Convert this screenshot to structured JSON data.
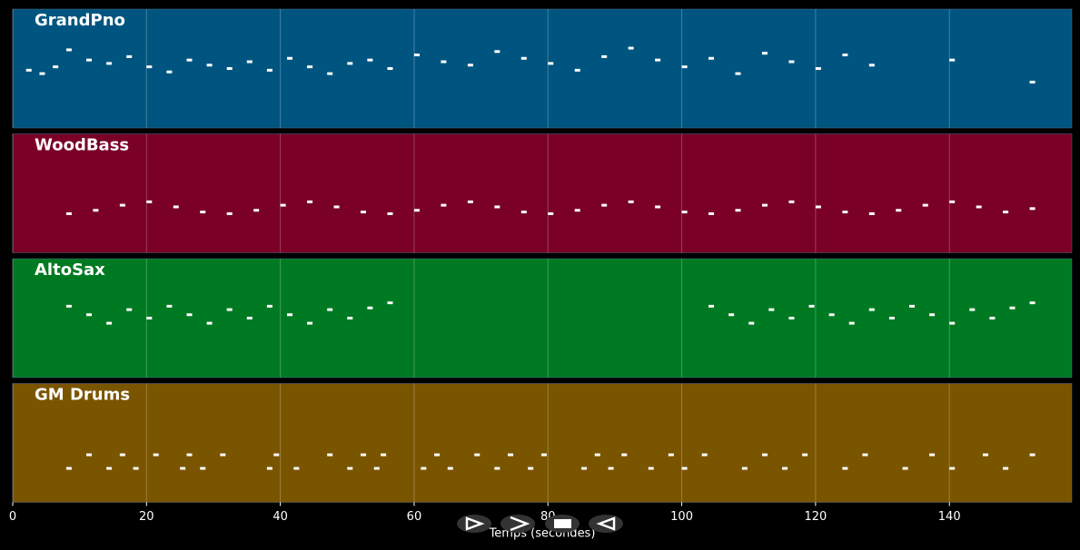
{
  "chart_data": {
    "type": "pianoroll",
    "xlabel": "Temps (secondes)",
    "xlim": [
      0,
      158.3
    ],
    "xticks": [
      0,
      20,
      40,
      60,
      80,
      100,
      120,
      140
    ],
    "ylim": [
      30,
      100
    ],
    "series": [
      {
        "name": "GrandPno",
        "color": "#005580",
        "x": [
          2,
          4,
          6,
          8,
          11,
          14,
          17,
          20,
          23,
          26,
          29,
          32,
          35,
          38,
          41,
          44,
          47,
          50,
          53,
          56,
          60,
          64,
          68,
          72,
          76,
          80,
          84,
          88,
          92,
          96,
          100,
          104,
          108,
          112,
          116,
          120,
          124,
          128,
          140,
          152
        ],
        "values": [
          64,
          62,
          66,
          76,
          70,
          68,
          72,
          66,
          63,
          70,
          67,
          65,
          69,
          64,
          71,
          66,
          62,
          68,
          70,
          65,
          73,
          69,
          67,
          75,
          71,
          68,
          64,
          72,
          77,
          70,
          66,
          71,
          62,
          74,
          69,
          65,
          73,
          67,
          70,
          57
        ]
      },
      {
        "name": "WoodBass",
        "color": "#7a0028",
        "x": [
          8,
          12,
          16,
          20,
          24,
          28,
          32,
          36,
          40,
          44,
          48,
          52,
          56,
          60,
          64,
          68,
          72,
          76,
          80,
          84,
          88,
          92,
          96,
          100,
          104,
          108,
          112,
          116,
          120,
          124,
          128,
          132,
          136,
          140,
          144,
          148,
          152
        ],
        "values": [
          53,
          55,
          58,
          60,
          57,
          54,
          53,
          55,
          58,
          60,
          57,
          54,
          53,
          55,
          58,
          60,
          57,
          54,
          53,
          55,
          58,
          60,
          57,
          54,
          53,
          55,
          58,
          60,
          57,
          54,
          53,
          55,
          58,
          60,
          57,
          54,
          56
        ]
      },
      {
        "name": "AltoSax",
        "color": "#007a22",
        "x": [
          8,
          11,
          14,
          17,
          20,
          23,
          26,
          29,
          32,
          35,
          38,
          41,
          44,
          47,
          50,
          53,
          56,
          104,
          107,
          110,
          113,
          116,
          119,
          122,
          125,
          128,
          131,
          134,
          137,
          140,
          143,
          146,
          149,
          152
        ],
        "values": [
          72,
          67,
          62,
          70,
          65,
          72,
          67,
          62,
          70,
          65,
          72,
          67,
          62,
          70,
          65,
          71,
          74,
          72,
          67,
          62,
          70,
          65,
          72,
          67,
          62,
          70,
          65,
          72,
          67,
          62,
          70,
          65,
          71,
          74
        ]
      },
      {
        "name": "GM Drums",
        "color": "#7a5500",
        "x": [
          8,
          11,
          14,
          16,
          18,
          21,
          25,
          26,
          28,
          31,
          38,
          39,
          42,
          47,
          50,
          52,
          54,
          55,
          61,
          63,
          65,
          69,
          72,
          74,
          77,
          79,
          85,
          87,
          89,
          91,
          95,
          98,
          100,
          103,
          109,
          112,
          115,
          118,
          124,
          127,
          133,
          137,
          140,
          145,
          148,
          152
        ],
        "values": [
          50,
          58,
          50,
          58,
          50,
          58,
          50,
          58,
          50,
          58,
          50,
          58,
          50,
          58,
          50,
          58,
          50,
          58,
          50,
          58,
          50,
          58,
          50,
          58,
          50,
          58,
          50,
          58,
          50,
          58,
          50,
          58,
          50,
          58,
          50,
          58,
          50,
          58,
          50,
          58,
          50,
          58,
          50,
          58,
          50,
          58
        ]
      }
    ]
  }
}
